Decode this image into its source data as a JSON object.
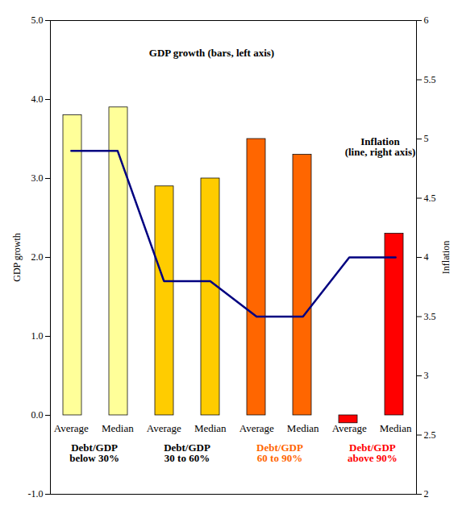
{
  "chart_data": {
    "type": "bar",
    "annotations": [
      "GDP growth (bars, left axis)",
      "Inflation\n(line, right axis)"
    ],
    "categories": [
      "Average",
      "Median",
      "Average",
      "Median",
      "Average",
      "Median",
      "Average",
      "Median"
    ],
    "x_groups": [
      {
        "label": "Debt/GDP\nbelow 30%",
        "color": "#000000"
      },
      {
        "label": "Debt/GDP\n30 to 60%",
        "color": "#000000"
      },
      {
        "label": "Debt/GDP\n60 to 90%",
        "color": "#FF6600"
      },
      {
        "label": "Debt/GDP\nabove 90%",
        "color": "#FF0000"
      }
    ],
    "y_label": "GDP growth",
    "y2_label": "Inflation",
    "ylim": [
      -1,
      5
    ],
    "yticks": [
      {
        "value": -1,
        "label": "-1.0"
      },
      {
        "value": 0,
        "label": "0.0"
      },
      {
        "value": 1,
        "label": "1.0"
      },
      {
        "value": 2,
        "label": "2.0"
      },
      {
        "value": 3,
        "label": "3.0"
      },
      {
        "value": 4,
        "label": "4.0"
      },
      {
        "value": 5,
        "label": "5.0"
      }
    ],
    "y2lim": [
      2,
      6
    ],
    "y2ticks": [
      2,
      2.5,
      3,
      3.5,
      4,
      4.5,
      5,
      5.5,
      6
    ],
    "grid": false,
    "series": [
      {
        "type": "bar",
        "colors": [
          "#FFFF99",
          "#FFFF99",
          "#FFCC00",
          "#FFCC00",
          "#FF6600",
          "#FF6600",
          "#FF0000",
          "#FF0000"
        ],
        "values": [
          3.8,
          3.9,
          2.9,
          3.0,
          3.5,
          3.3,
          -0.1,
          2.3
        ]
      },
      {
        "type": "line",
        "axis": "y2",
        "color": "#000080",
        "values": [
          4.9,
          4.9,
          3.8,
          3.8,
          3.5,
          3.5,
          4.0,
          4.0
        ]
      }
    ]
  }
}
